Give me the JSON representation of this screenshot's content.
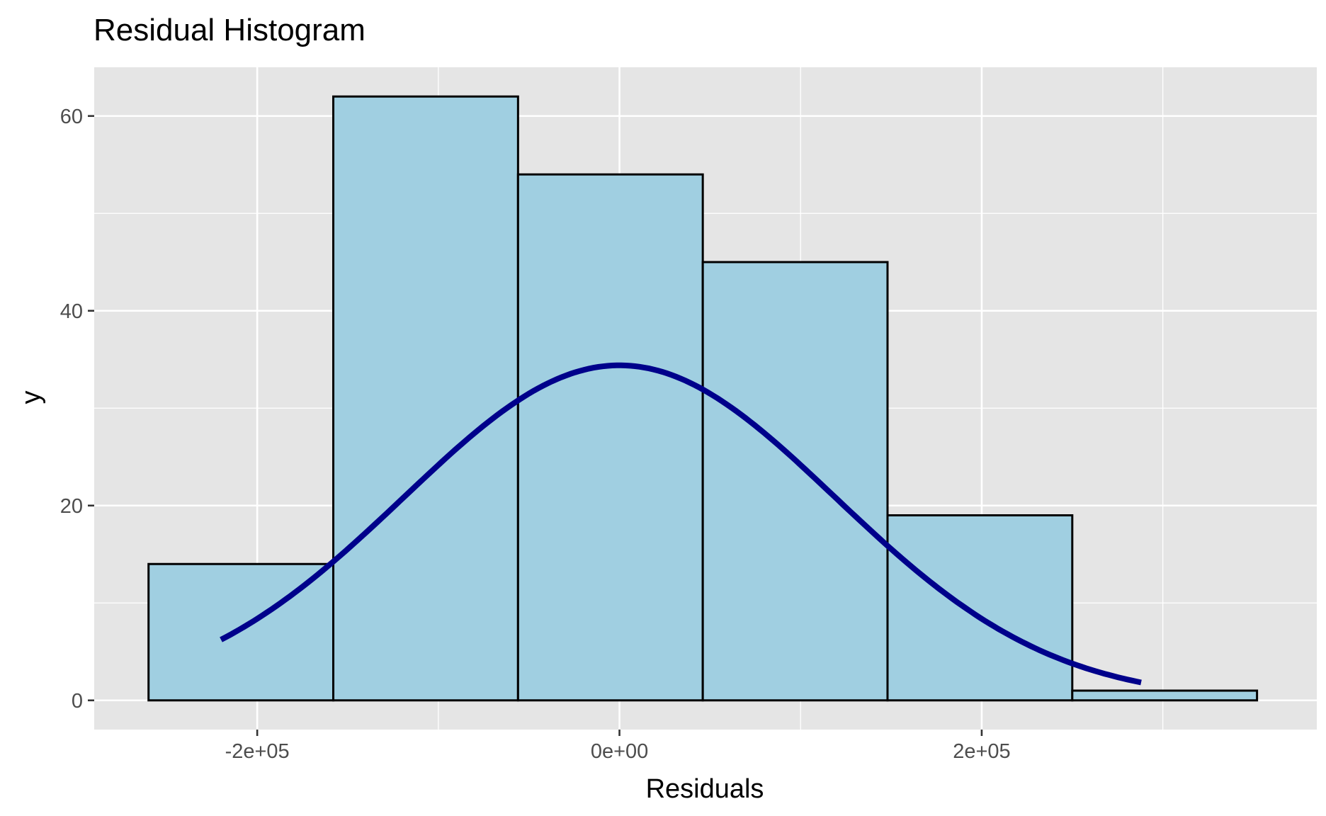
{
  "chart_data": {
    "type": "bar",
    "title": "Residual Histogram",
    "xlabel": "Residuals",
    "ylabel": "y",
    "bins": [
      {
        "x0": -260000,
        "x1": -158000,
        "count": 14
      },
      {
        "x0": -158000,
        "x1": -56000,
        "count": 62
      },
      {
        "x0": -56000,
        "x1": 46000,
        "count": 54
      },
      {
        "x0": 46000,
        "x1": 148000,
        "count": 45
      },
      {
        "x0": 148000,
        "x1": 250000,
        "count": 19
      },
      {
        "x0": 250000,
        "x1": 352000,
        "count": 1
      }
    ],
    "density_curve": {
      "name": "",
      "mean": 0,
      "sd": 119000,
      "peak": 34.4,
      "x_range": [
        -220000,
        288000
      ]
    },
    "xlim": [
      -290000,
      385000
    ],
    "ylim": [
      -3,
      65
    ],
    "x_ticks": [
      {
        "value": -200000,
        "label": "-2e+05"
      },
      {
        "value": 0,
        "label": "0e+00"
      },
      {
        "value": 200000,
        "label": "2e+05"
      }
    ],
    "x_minor_ticks": [
      -100000,
      100000,
      300000
    ],
    "y_ticks": [
      {
        "value": 0,
        "label": "0"
      },
      {
        "value": 20,
        "label": "20"
      },
      {
        "value": 40,
        "label": "40"
      },
      {
        "value": 60,
        "label": "60"
      }
    ],
    "y_minor_ticks": [
      10,
      30,
      50
    ],
    "grid": true,
    "colors": {
      "panel_background": "#e5e5e5",
      "grid_line": "#ffffff",
      "bar_fill": "#a0cfe1",
      "bar_outline": "#000000",
      "curve": "#00008b"
    }
  }
}
